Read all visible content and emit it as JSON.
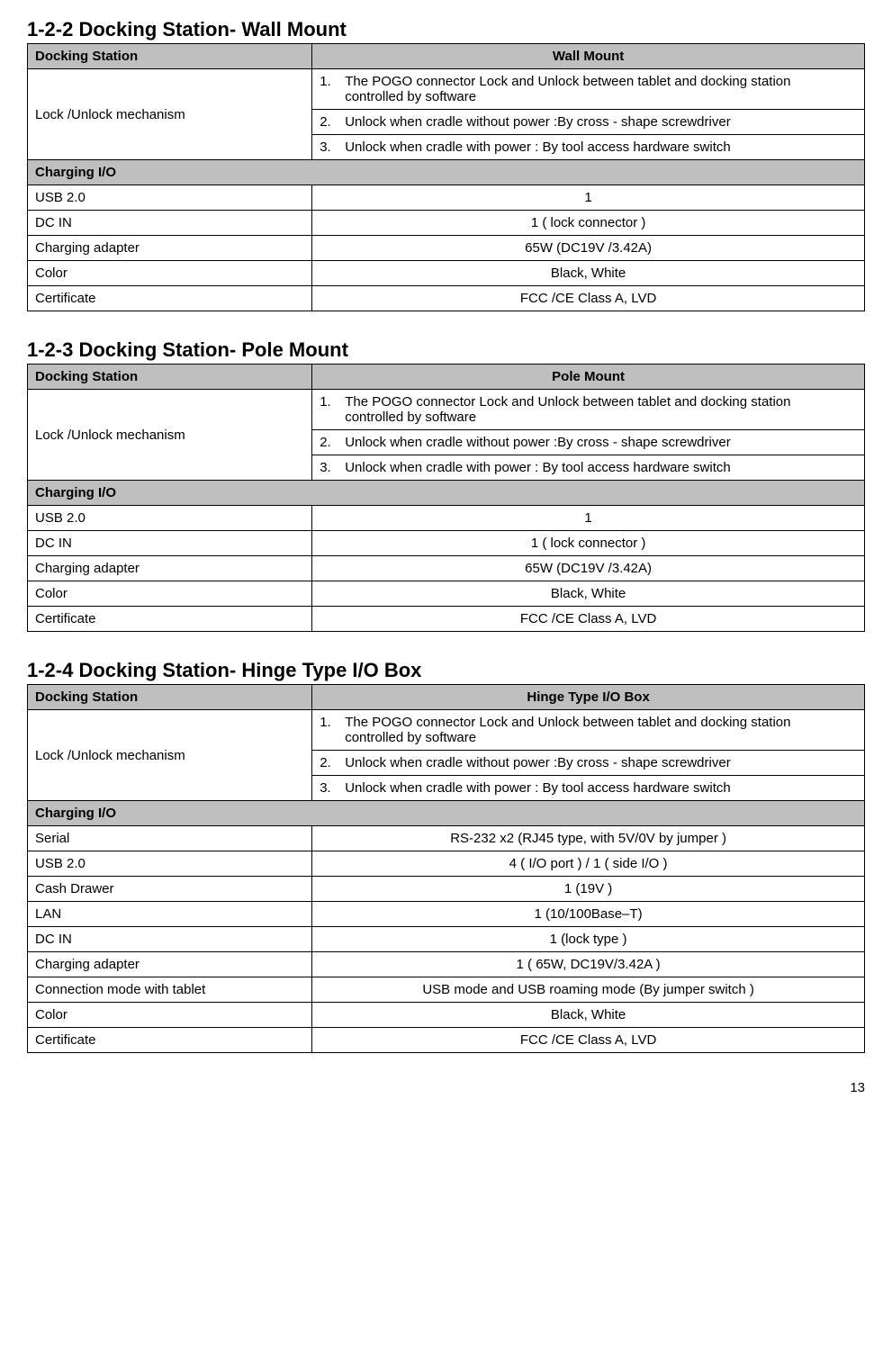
{
  "sections": [
    {
      "heading": "1-2-2   Docking Station- Wall Mount",
      "header": {
        "left": "Docking Station",
        "right": "Wall Mount"
      },
      "lock_label": "Lock /Unlock mechanism",
      "lock_items": [
        "The POGO connector Lock and Unlock between tablet and docking station controlled by software",
        "Unlock when cradle without power :By cross - shape screwdriver",
        "Unlock when cradle with power : By tool access hardware switch"
      ],
      "charging_header": "Charging I/O",
      "rows": [
        {
          "label": "USB 2.0",
          "value": "1"
        },
        {
          "label": "DC IN",
          "value": "1 ( lock connector )"
        },
        {
          "label": "Charging adapter",
          "value": "65W (DC19V /3.42A)"
        },
        {
          "label": "Color",
          "value": "Black, White"
        },
        {
          "label": "Certificate",
          "value": "FCC /CE Class A, LVD"
        }
      ]
    },
    {
      "heading": "1-2-3   Docking Station- Pole Mount",
      "header": {
        "left": "Docking Station",
        "right": "Pole Mount"
      },
      "lock_label": "Lock /Unlock mechanism",
      "lock_items": [
        "The POGO connector Lock and Unlock between tablet and docking station controlled by software",
        "Unlock when cradle without power :By cross - shape screwdriver",
        "Unlock when cradle with power : By tool access hardware switch"
      ],
      "charging_header": "Charging I/O",
      "rows": [
        {
          "label": "USB 2.0",
          "value": "1"
        },
        {
          "label": "DC IN",
          "value": "1 ( lock connector )"
        },
        {
          "label": "Charging adapter",
          "value": "65W (DC19V /3.42A)"
        },
        {
          "label": "Color",
          "value": "Black, White"
        },
        {
          "label": "Certificate",
          "value": "FCC /CE Class A, LVD"
        }
      ]
    },
    {
      "heading": "1-2-4   Docking Station- Hinge Type I/O Box",
      "header": {
        "left": "Docking Station",
        "right": "Hinge Type I/O Box"
      },
      "lock_label": "Lock /Unlock mechanism",
      "lock_items": [
        "The POGO connector Lock and Unlock between tablet and docking station controlled by software",
        "Unlock when cradle without power :By cross - shape screwdriver",
        "Unlock when cradle with power : By tool access hardware switch"
      ],
      "charging_header": "Charging I/O",
      "rows": [
        {
          "label": "Serial",
          "value": "RS-232 x2 (RJ45 type, with 5V/0V by jumper )"
        },
        {
          "label": "USB 2.0",
          "value": "4 ( I/O port ) / 1 ( side I/O )"
        },
        {
          "label": "Cash Drawer",
          "value": "1 (19V )"
        },
        {
          "label": "LAN",
          "value": "1 (10/100Base–T)"
        },
        {
          "label": "DC IN",
          "value": "1 (lock type )"
        },
        {
          "label": "Charging adapter",
          "value": "1 ( 65W, DC19V/3.42A )"
        },
        {
          "label": "Connection mode with tablet",
          "value": "USB mode and USB roaming mode (By jumper switch )"
        },
        {
          "label": "Color",
          "value": "Black, White"
        },
        {
          "label": "Certificate",
          "value": "FCC /CE Class A, LVD"
        }
      ]
    }
  ],
  "page_number": "13"
}
